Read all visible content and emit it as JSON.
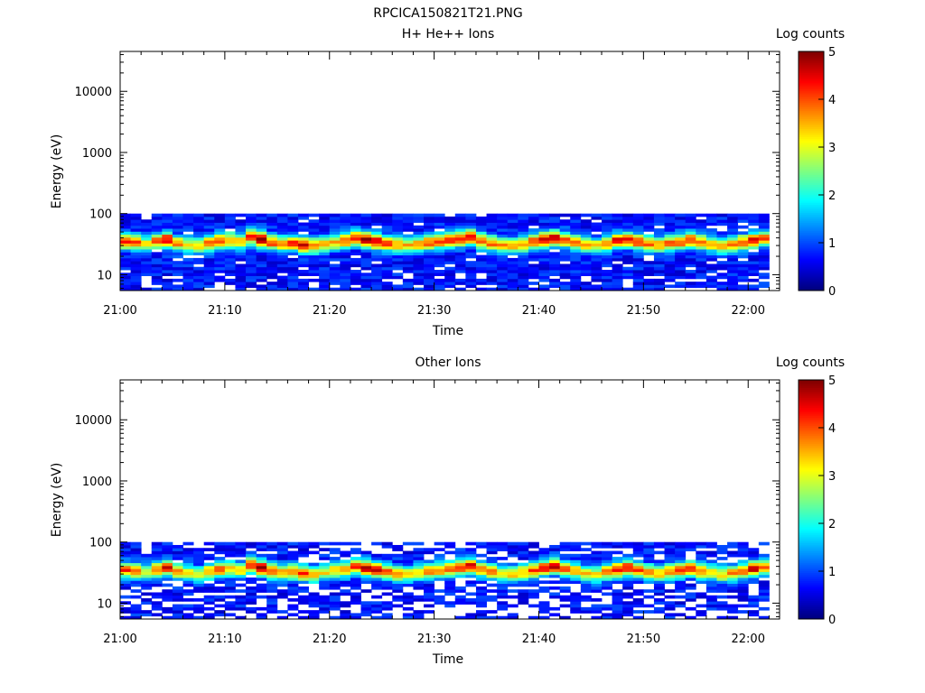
{
  "figure": {
    "filename": "RPCICA150821T21.PNG"
  },
  "colorbar": {
    "title": "Log counts",
    "range": [
      0,
      5
    ],
    "ticks": [
      "0",
      "1",
      "2",
      "3",
      "4",
      "5"
    ],
    "colormap": "jet"
  },
  "chart_data": [
    {
      "type": "heatmap",
      "title": "H+ He++ Ions",
      "xlabel": "Time",
      "ylabel": "Energy (eV)",
      "yscale": "log",
      "ylim": [
        5.5,
        45000
      ],
      "y_ticks": [
        10,
        100,
        1000,
        10000
      ],
      "y_tick_labels": [
        "10",
        "100",
        "1000",
        "10000"
      ],
      "x_range_minutes": [
        0,
        63
      ],
      "x_ticks_minutes": [
        0,
        10,
        20,
        30,
        40,
        50,
        60
      ],
      "x_tick_labels": [
        "21:00",
        "21:10",
        "21:20",
        "21:30",
        "21:40",
        "21:50",
        "22:00"
      ],
      "energy_range_data": [
        5.5,
        100
      ],
      "time_range_data_minutes": [
        0,
        62
      ],
      "peak_energy_eV": [
        35,
        34,
        32,
        36,
        38,
        33,
        31,
        30,
        33,
        36,
        37,
        35,
        42,
        38,
        34,
        32,
        33,
        31,
        30,
        32,
        34,
        36,
        40,
        38,
        35,
        33,
        31,
        30,
        32,
        34,
        35,
        37,
        39,
        41,
        36,
        33,
        31,
        30,
        32,
        35,
        38,
        40,
        37,
        34,
        31,
        30,
        33,
        36,
        38,
        35,
        32,
        31,
        33,
        35,
        37,
        34,
        32,
        30,
        31,
        34,
        37,
        39
      ],
      "peak_log_counts": [
        3.6,
        3.2,
        2.6,
        3.4,
        3.8,
        3.1,
        2.6,
        2.4,
        3.3,
        3.5,
        3.0,
        2.8,
        3.6,
        4.2,
        3.4,
        3.0,
        3.5,
        3.7,
        3.2,
        2.7,
        2.9,
        3.3,
        3.6,
        4.1,
        3.9,
        3.4,
        3.0,
        2.7,
        2.9,
        3.3,
        3.2,
        3.5,
        3.6,
        3.9,
        3.4,
        3.1,
        2.8,
        2.7,
        3.0,
        3.4,
        3.8,
        3.9,
        3.3,
        3.0,
        2.7,
        2.6,
        3.2,
        3.8,
        3.9,
        3.6,
        3.3,
        2.9,
        3.1,
        3.4,
        3.6,
        3.2,
        2.9,
        2.7,
        3.0,
        3.5,
        3.8,
        3.4
      ]
    },
    {
      "type": "heatmap",
      "title": "Other Ions",
      "xlabel": "Time",
      "ylabel": "Energy (eV)",
      "yscale": "log",
      "ylim": [
        5.5,
        45000
      ],
      "y_ticks": [
        10,
        100,
        1000,
        10000
      ],
      "y_tick_labels": [
        "10",
        "100",
        "1000",
        "10000"
      ],
      "x_range_minutes": [
        0,
        63
      ],
      "x_ticks_minutes": [
        0,
        10,
        20,
        30,
        40,
        50,
        60
      ],
      "x_tick_labels": [
        "21:00",
        "21:10",
        "21:20",
        "21:30",
        "21:40",
        "21:50",
        "22:00"
      ],
      "energy_range_data": [
        5.5,
        100
      ],
      "time_range_data_minutes": [
        0,
        62
      ],
      "peak_energy_eV": [
        35,
        34,
        32,
        36,
        38,
        33,
        31,
        30,
        33,
        36,
        37,
        35,
        42,
        38,
        34,
        32,
        33,
        31,
        30,
        32,
        34,
        36,
        40,
        38,
        35,
        33,
        31,
        30,
        32,
        34,
        35,
        37,
        39,
        41,
        36,
        33,
        31,
        30,
        32,
        35,
        38,
        40,
        37,
        34,
        31,
        30,
        33,
        36,
        38,
        35,
        32,
        31,
        33,
        35,
        37,
        34,
        32,
        30,
        31,
        34,
        37,
        39
      ],
      "peak_log_counts": [
        3.4,
        3.0,
        2.5,
        3.2,
        3.7,
        3.0,
        2.5,
        2.3,
        3.1,
        3.3,
        2.8,
        2.6,
        3.5,
        4.1,
        3.3,
        2.9,
        3.3,
        3.6,
        3.1,
        2.6,
        2.8,
        3.1,
        3.5,
        4.0,
        3.8,
        3.3,
        2.9,
        2.6,
        2.8,
        3.2,
        3.1,
        3.3,
        3.5,
        3.8,
        3.3,
        3.0,
        2.7,
        2.6,
        2.9,
        3.3,
        3.7,
        3.8,
        3.2,
        2.9,
        2.6,
        2.5,
        3.1,
        3.7,
        3.8,
        3.5,
        3.2,
        2.8,
        3.0,
        3.3,
        3.5,
        3.1,
        2.8,
        2.6,
        2.9,
        3.4,
        3.9,
        3.3
      ]
    }
  ]
}
